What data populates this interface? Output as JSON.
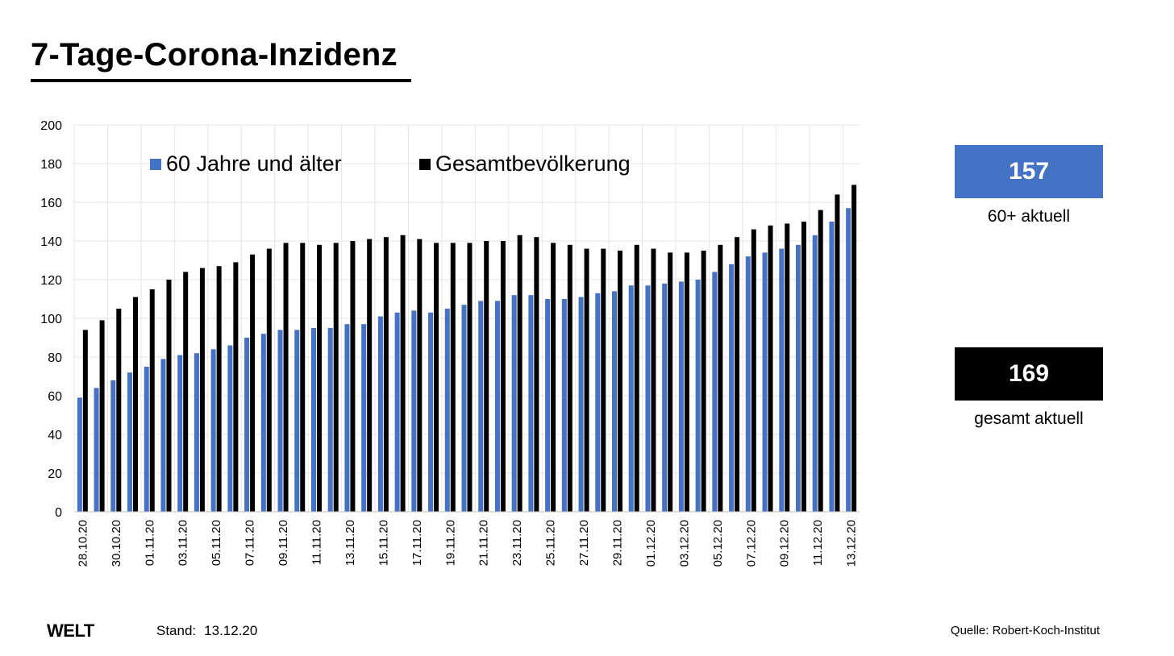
{
  "title": "7-Tage-Corona-Inzidenz",
  "chart_data": {
    "type": "bar",
    "ylim": [
      0,
      200
    ],
    "yticks": [
      0,
      20,
      40,
      60,
      80,
      100,
      120,
      140,
      160,
      180,
      200
    ],
    "grid": true,
    "legend_position": "top",
    "categories": [
      "28.10.20",
      "29.10.20",
      "30.10.20",
      "31.10.20",
      "01.11.20",
      "02.11.20",
      "03.11.20",
      "04.11.20",
      "05.11.20",
      "06.11.20",
      "07.11.20",
      "08.11.20",
      "09.11.20",
      "10.11.20",
      "11.11.20",
      "12.11.20",
      "13.11.20",
      "14.11.20",
      "15.11.20",
      "16.11.20",
      "17.11.20",
      "18.11.20",
      "19.11.20",
      "20.11.20",
      "21.11.20",
      "22.11.20",
      "23.11.20",
      "24.11.20",
      "25.11.20",
      "26.11.20",
      "27.11.20",
      "28.11.20",
      "29.11.20",
      "30.11.20",
      "01.12.20",
      "02.12.20",
      "03.12.20",
      "04.12.20",
      "05.12.20",
      "06.12.20",
      "07.12.20",
      "08.12.20",
      "09.12.20",
      "10.12.20",
      "11.12.20",
      "12.12.20",
      "13.12.20"
    ],
    "xtick_labels": [
      "28.10.20",
      "30.10.20",
      "01.11.20",
      "03.11.20",
      "05.11.20",
      "07.11.20",
      "09.11.20",
      "11.11.20",
      "13.11.20",
      "15.11.20",
      "17.11.20",
      "19.11.20",
      "21.11.20",
      "23.11.20",
      "25.11.20",
      "27.11.20",
      "29.11.20",
      "01.12.20",
      "03.12.20",
      "05.12.20",
      "07.12.20",
      "09.12.20",
      "11.12.20",
      "13.12.20"
    ],
    "series": [
      {
        "name": "60 Jahre und älter",
        "color": "#4472C4",
        "values": [
          59,
          64,
          68,
          72,
          75,
          79,
          81,
          82,
          84,
          86,
          90,
          92,
          94,
          94,
          95,
          95,
          97,
          97,
          101,
          103,
          104,
          103,
          105,
          107,
          109,
          109,
          112,
          112,
          110,
          110,
          111,
          113,
          114,
          117,
          117,
          118,
          119,
          120,
          124,
          128,
          132,
          134,
          136,
          138,
          143,
          150,
          157
        ]
      },
      {
        "name": "Gesamtbevölkerung",
        "color": "#000000",
        "values": [
          94,
          99,
          105,
          111,
          115,
          120,
          124,
          126,
          127,
          129,
          133,
          136,
          139,
          139,
          138,
          139,
          140,
          141,
          142,
          143,
          141,
          139,
          139,
          139,
          140,
          140,
          143,
          142,
          139,
          138,
          136,
          136,
          135,
          138,
          136,
          134,
          134,
          135,
          138,
          142,
          146,
          148,
          149,
          150,
          156,
          164,
          169
        ]
      }
    ]
  },
  "kpis": [
    {
      "value": "157",
      "label": "60+ aktuell",
      "color": "#4472C4"
    },
    {
      "value": "169",
      "label": "gesamt aktuell",
      "color": "#000000"
    }
  ],
  "footer": {
    "logo": "WELT",
    "stand_label": "Stand:",
    "stand_value": "13.12.20",
    "source": "Quelle: Robert-Koch-Institut"
  }
}
